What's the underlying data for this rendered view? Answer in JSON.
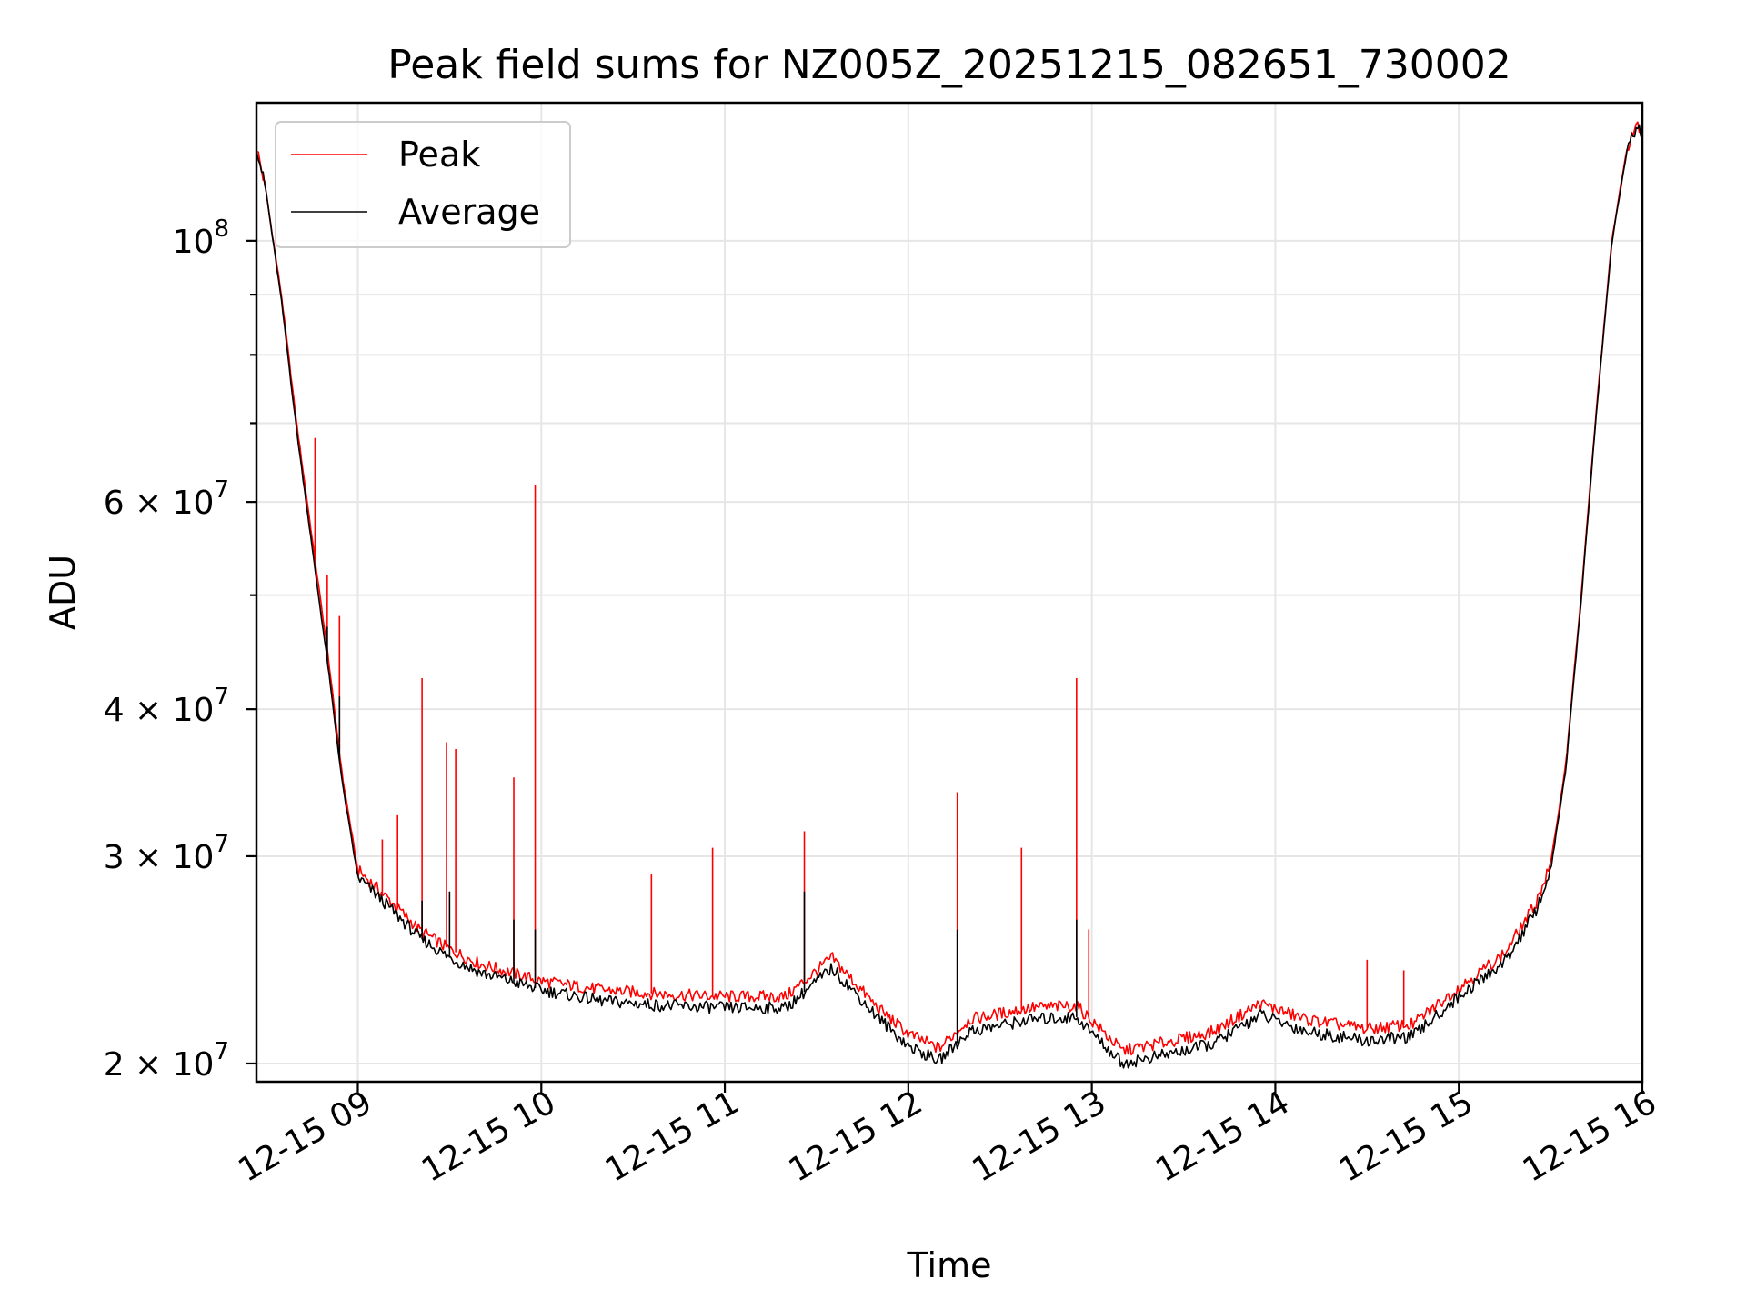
{
  "chart_data": {
    "type": "line",
    "title": "Peak field sums for NZ005Z_20251215_082651_730002",
    "xlabel": "Time",
    "ylabel": "ADU",
    "y_scale": "log",
    "ylim": [
      19300000,
      131000000
    ],
    "xlim": [
      "2025-12-15 08:26:51",
      "2025-12-15 16:00:00"
    ],
    "grid": true,
    "legend_position": "upper left",
    "x_ticks": [
      {
        "t": "2025-12-15 09:00",
        "label": "12-15 09"
      },
      {
        "t": "2025-12-15 10:00",
        "label": "12-15 10"
      },
      {
        "t": "2025-12-15 11:00",
        "label": "12-15 11"
      },
      {
        "t": "2025-12-15 12:00",
        "label": "12-15 12"
      },
      {
        "t": "2025-12-15 13:00",
        "label": "12-15 13"
      },
      {
        "t": "2025-12-15 14:00",
        "label": "12-15 14"
      },
      {
        "t": "2025-12-15 15:00",
        "label": "12-15 15"
      },
      {
        "t": "2025-12-15 16:00",
        "label": "12-15 16"
      }
    ],
    "y_ticks_major": [
      {
        "value": 20000000,
        "base": "2 × 10",
        "exp": "7"
      },
      {
        "value": 30000000,
        "base": "3 × 10",
        "exp": "7"
      },
      {
        "value": 40000000,
        "base": "4 × 10",
        "exp": "7"
      },
      {
        "value": 60000000,
        "base": "6 × 10",
        "exp": "7"
      },
      {
        "value": 100000000,
        "base": "10",
        "exp": "8"
      }
    ],
    "y_ticks_minor": [
      50000000,
      70000000,
      80000000,
      90000000
    ],
    "series": [
      {
        "name": "Peak",
        "color": "#ff0000",
        "x": [
          "2025-12-15 08:27",
          "2025-12-15 08:30",
          "2025-12-15 08:35",
          "2025-12-15 08:40",
          "2025-12-15 08:45",
          "2025-12-15 08:50",
          "2025-12-15 08:55",
          "2025-12-15 09:00",
          "2025-12-15 09:10",
          "2025-12-15 09:20",
          "2025-12-15 09:30",
          "2025-12-15 09:40",
          "2025-12-15 09:50",
          "2025-12-15 10:00",
          "2025-12-15 10:20",
          "2025-12-15 10:40",
          "2025-12-15 11:00",
          "2025-12-15 11:20",
          "2025-12-15 11:35",
          "2025-12-15 11:50",
          "2025-12-15 12:00",
          "2025-12-15 12:10",
          "2025-12-15 12:20",
          "2025-12-15 12:40",
          "2025-12-15 12:55",
          "2025-12-15 13:10",
          "2025-12-15 13:30",
          "2025-12-15 13:40",
          "2025-12-15 13:55",
          "2025-12-15 14:10",
          "2025-12-15 14:30",
          "2025-12-15 14:45",
          "2025-12-15 15:00",
          "2025-12-15 15:15",
          "2025-12-15 15:25",
          "2025-12-15 15:30",
          "2025-12-15 15:35",
          "2025-12-15 15:40",
          "2025-12-15 15:45",
          "2025-12-15 15:50",
          "2025-12-15 15:55",
          "2025-12-15 15:58",
          "2025-12-15 16:00"
        ],
        "values": [
          120000000,
          110000000,
          90000000,
          70000000,
          56000000,
          45000000,
          35000000,
          29200000,
          27600000,
          26000000,
          25000000,
          24300000,
          23900000,
          23500000,
          23100000,
          22900000,
          22800000,
          22800000,
          24600000,
          22300000,
          21200000,
          20600000,
          21800000,
          22300000,
          22400000,
          20500000,
          21000000,
          21300000,
          22500000,
          21800000,
          21400000,
          21600000,
          23200000,
          24800000,
          27300000,
          29500000,
          36000000,
          50000000,
          72000000,
          100000000,
          120000000,
          125000000,
          124500000
        ],
        "spikes": [
          {
            "t": "2025-12-15 08:46",
            "value": 68000000
          },
          {
            "t": "2025-12-15 08:50",
            "value": 52000000
          },
          {
            "t": "2025-12-15 08:54",
            "value": 48000000
          },
          {
            "t": "2025-12-15 09:08",
            "value": 31000000
          },
          {
            "t": "2025-12-15 09:13",
            "value": 32500000
          },
          {
            "t": "2025-12-15 09:21",
            "value": 42500000
          },
          {
            "t": "2025-12-15 09:29",
            "value": 37500000
          },
          {
            "t": "2025-12-15 09:32",
            "value": 37000000
          },
          {
            "t": "2025-12-15 09:51",
            "value": 35000000
          },
          {
            "t": "2025-12-15 09:58",
            "value": 62000000
          },
          {
            "t": "2025-12-15 10:36",
            "value": 29000000
          },
          {
            "t": "2025-12-15 10:56",
            "value": 30500000
          },
          {
            "t": "2025-12-15 11:26",
            "value": 31500000
          },
          {
            "t": "2025-12-15 12:16",
            "value": 34000000
          },
          {
            "t": "2025-12-15 12:37",
            "value": 30500000
          },
          {
            "t": "2025-12-15 12:55",
            "value": 42500000
          },
          {
            "t": "2025-12-15 12:59",
            "value": 26000000
          },
          {
            "t": "2025-12-15 14:30",
            "value": 24500000
          },
          {
            "t": "2025-12-15 14:42",
            "value": 24000000
          }
        ]
      },
      {
        "name": "Average",
        "color": "#000000",
        "x": [
          "2025-12-15 08:27",
          "2025-12-15 08:30",
          "2025-12-15 08:35",
          "2025-12-15 08:40",
          "2025-12-15 08:45",
          "2025-12-15 08:50",
          "2025-12-15 08:55",
          "2025-12-15 09:00",
          "2025-12-15 09:10",
          "2025-12-15 09:20",
          "2025-12-15 09:30",
          "2025-12-15 09:40",
          "2025-12-15 09:50",
          "2025-12-15 10:00",
          "2025-12-15 10:20",
          "2025-12-15 10:40",
          "2025-12-15 11:00",
          "2025-12-15 11:20",
          "2025-12-15 11:35",
          "2025-12-15 11:50",
          "2025-12-15 12:00",
          "2025-12-15 12:10",
          "2025-12-15 12:20",
          "2025-12-15 12:40",
          "2025-12-15 12:55",
          "2025-12-15 13:10",
          "2025-12-15 13:30",
          "2025-12-15 13:40",
          "2025-12-15 13:55",
          "2025-12-15 14:10",
          "2025-12-15 14:30",
          "2025-12-15 14:45",
          "2025-12-15 15:00",
          "2025-12-15 15:15",
          "2025-12-15 15:25",
          "2025-12-15 15:30",
          "2025-12-15 15:35",
          "2025-12-15 15:40",
          "2025-12-15 15:45",
          "2025-12-15 15:50",
          "2025-12-15 15:55",
          "2025-12-15 15:58",
          "2025-12-15 16:00"
        ],
        "values": [
          120000000,
          110000000,
          89000000,
          69000000,
          55000000,
          44000000,
          34500000,
          28800000,
          27200000,
          25600000,
          24600000,
          23900000,
          23500000,
          23100000,
          22600000,
          22400000,
          22300000,
          22300000,
          24100000,
          21900000,
          20700000,
          20100000,
          21300000,
          21800000,
          21900000,
          20000000,
          20500000,
          20800000,
          22000000,
          21300000,
          20900000,
          21100000,
          22800000,
          24400000,
          26900000,
          29100000,
          35600000,
          49500000,
          71500000,
          99500000,
          119500000,
          124500000,
          124000000
        ],
        "spikes": [
          {
            "t": "2025-12-15 08:50",
            "value": 47000000
          },
          {
            "t": "2025-12-15 08:54",
            "value": 41000000
          },
          {
            "t": "2025-12-15 09:21",
            "value": 27500000
          },
          {
            "t": "2025-12-15 09:30",
            "value": 28000000
          },
          {
            "t": "2025-12-15 09:51",
            "value": 26500000
          },
          {
            "t": "2025-12-15 09:58",
            "value": 26000000
          },
          {
            "t": "2025-12-15 11:26",
            "value": 28000000
          },
          {
            "t": "2025-12-15 12:16",
            "value": 26000000
          },
          {
            "t": "2025-12-15 12:55",
            "value": 26500000
          }
        ]
      }
    ]
  }
}
